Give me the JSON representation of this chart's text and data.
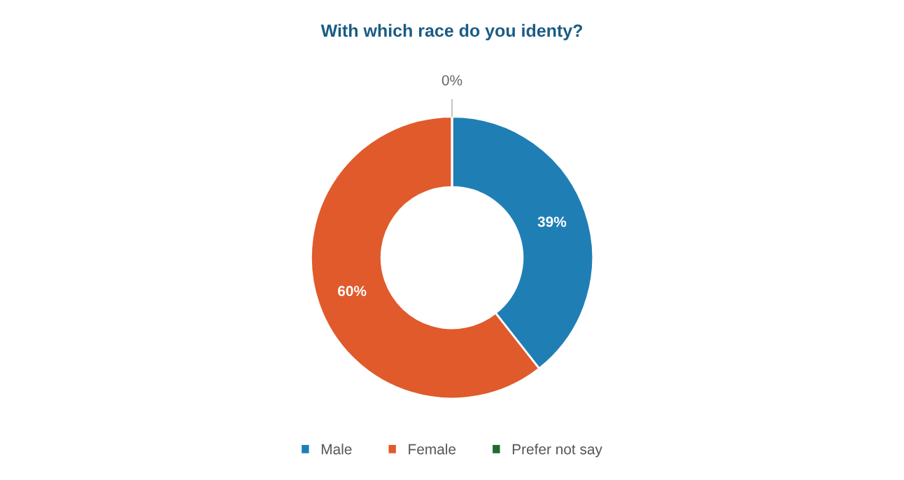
{
  "chart_data": {
    "type": "donut",
    "title": "With which race do you identy?",
    "categories": [
      "Male",
      "Female",
      "Prefer not say"
    ],
    "values": [
      39,
      60,
      0
    ],
    "colors": [
      "#1f7fb5",
      "#e05a2b",
      "#1e6b2e"
    ],
    "value_labels": [
      "39%",
      "60%",
      "0%"
    ],
    "legend": "bottom"
  }
}
